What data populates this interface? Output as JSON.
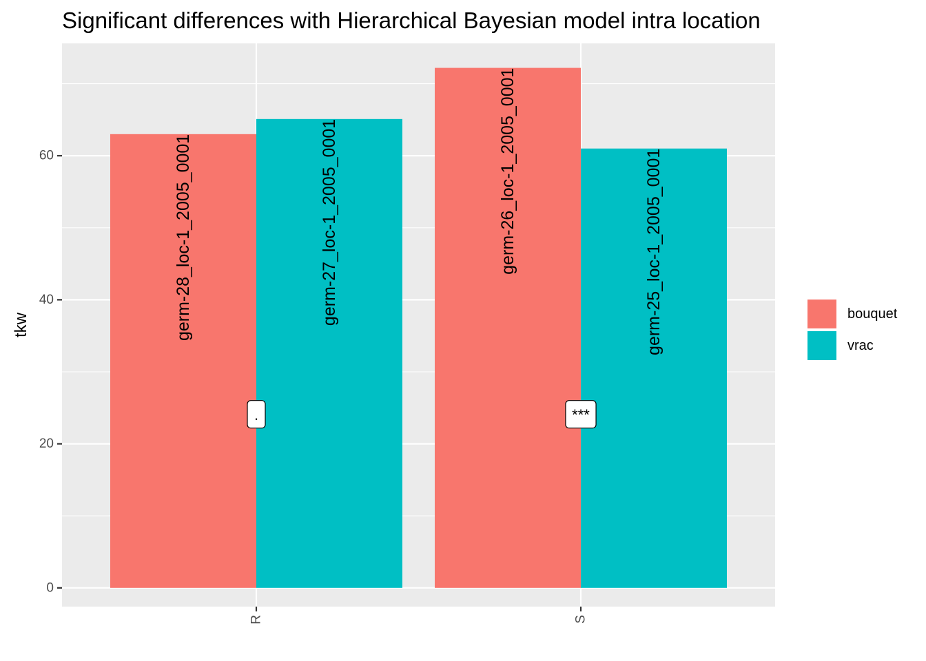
{
  "chart_data": {
    "type": "bar",
    "title": "Significant differences with Hierarchical Bayesian model intra location",
    "xlabel": "",
    "ylabel": "tkw",
    "categories": [
      "R",
      "S"
    ],
    "ylim": [
      -2.6,
      75.6
    ],
    "yticks": [
      0,
      20,
      40,
      60
    ],
    "yticks_labels": [
      "0",
      "20",
      "40",
      "60"
    ],
    "grid": true,
    "legend_position": "right",
    "series": [
      {
        "name": "bouquet",
        "color": "#F8766D",
        "values": [
          63,
          72.2
        ],
        "labels": [
          "germ-28_loc-1_2005_0001",
          "germ-26_loc-1_2005_0001"
        ]
      },
      {
        "name": "vrac",
        "color": "#00BFC4",
        "values": [
          65.1,
          61
        ]
      },
      {
        "name": "vrac",
        "color": "#00BFC4",
        "values": [
          65.1,
          61
        ],
        "labels": [
          "germ-27_loc-1_2005_0001",
          "germ-25_loc-1_2005_0001"
        ]
      }
    ],
    "significance": [
      {
        "category": "R",
        "label": ".",
        "y": 24.1
      },
      {
        "category": "S",
        "label": "***",
        "y": 24.1
      }
    ]
  }
}
